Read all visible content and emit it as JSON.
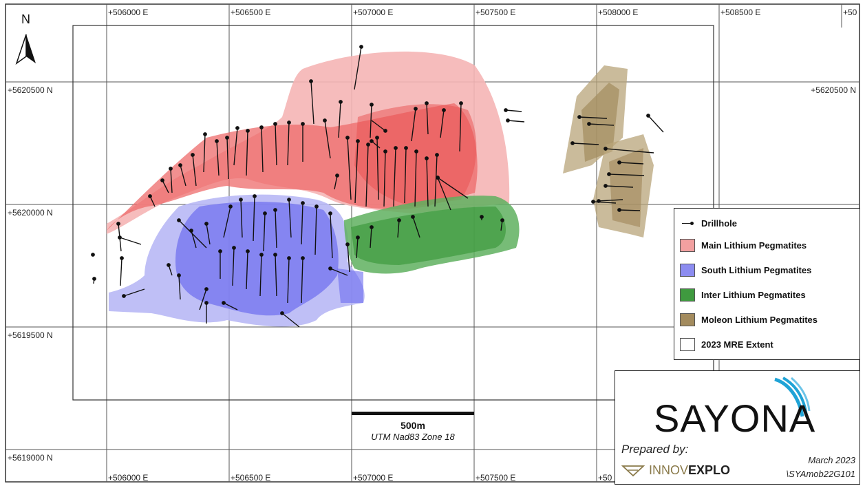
{
  "map": {
    "north_label": "N",
    "easting_top": [
      "+506000 E",
      "+506500 E",
      "+507000 E",
      "+507500 E",
      "+508000 E",
      "+508500 E",
      "+50"
    ],
    "easting_bottom": [
      "+506000 E",
      "+506500 E",
      "+507000 E",
      "+507500 E",
      "+50"
    ],
    "northing_left": [
      "+5620500 N",
      "+5620000 N",
      "+5619500 N",
      "+5619000 N"
    ],
    "northing_right": "+5620500 N",
    "scale_bar": {
      "label": "500m",
      "projection": "UTM Nad83 Zone 18"
    }
  },
  "legend": {
    "items": [
      {
        "label": "Drillhole",
        "symbol": "drillhole"
      },
      {
        "label": "Main Lithium Pegmatites",
        "color": "#f2a0a0"
      },
      {
        "label": "South Lithium Pegmatites",
        "color": "#8c8cf0"
      },
      {
        "label": "Inter Lithium Pegmatites",
        "color": "#3f9a3f"
      },
      {
        "label": "Moleon Lithium Pegmatites",
        "color": "#a38b5e"
      },
      {
        "label": "2023 MRE Extent",
        "color": "#ffffff"
      }
    ]
  },
  "title_block": {
    "logo": "SAYONA",
    "prepared_by": "Prepared by:",
    "company_a": "INNOV",
    "company_b": "EXPLO",
    "date": "March 2023",
    "doc_code": "\\SYAmob22G101"
  },
  "colors": {
    "main": "#ee6b6b",
    "main_light": "#f5b5b5",
    "south": "#6c6cf0",
    "south_light": "#b8b8f5",
    "inter": "#3f9a3f",
    "moleon": "#a38b5e"
  }
}
